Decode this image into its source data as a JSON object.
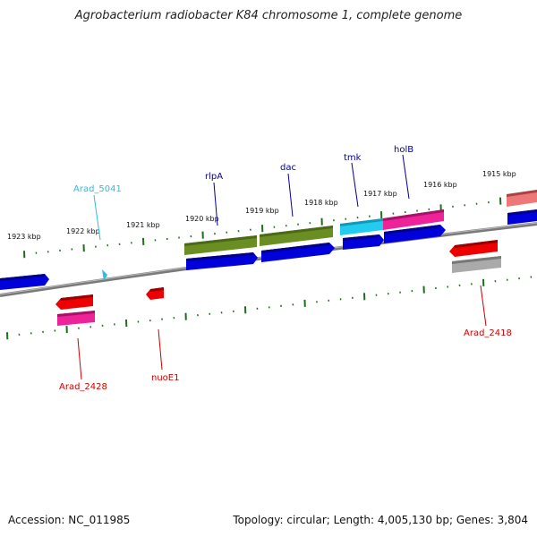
{
  "title": "Agrobacterium radiobacter K84 chromosome 1, complete genome",
  "footer": {
    "accession": "Accession: NC_011985",
    "summary": "Topology: circular; Length: 4,005,130 bp; Genes: 3,804"
  },
  "scale_labels": [
    "1923 kbp",
    "1922 kbp",
    "1921 kbp",
    "1920 kbp",
    "1919 kbp",
    "1918 kbp",
    "1917 kbp",
    "1916 kbp",
    "1915 kbp"
  ],
  "gene_labels": [
    {
      "text": "Arad_5041",
      "color": "#33bbdd"
    },
    {
      "text": "rlpA",
      "color": "#000099"
    },
    {
      "text": "dac",
      "color": "#000099"
    },
    {
      "text": "tmk",
      "color": "#000099"
    },
    {
      "text": "holB",
      "color": "#000099"
    },
    {
      "text": "Arad_2428",
      "color": "#cc0000"
    },
    {
      "text": "nuoE1",
      "color": "#cc0000"
    },
    {
      "text": "Arad_2418",
      "color": "#cc0000"
    }
  ],
  "colors": {
    "backbone": "#777777",
    "tick": "#1e6e1e",
    "cds_blue": "#0000dd",
    "cds_olive": "#6b8e23",
    "cds_cyan": "#22ccee",
    "cds_magenta": "#ee2299",
    "cds_red": "#ee0000",
    "cds_gray": "#aaaaaa",
    "cds_salmon": "#ee7777"
  }
}
